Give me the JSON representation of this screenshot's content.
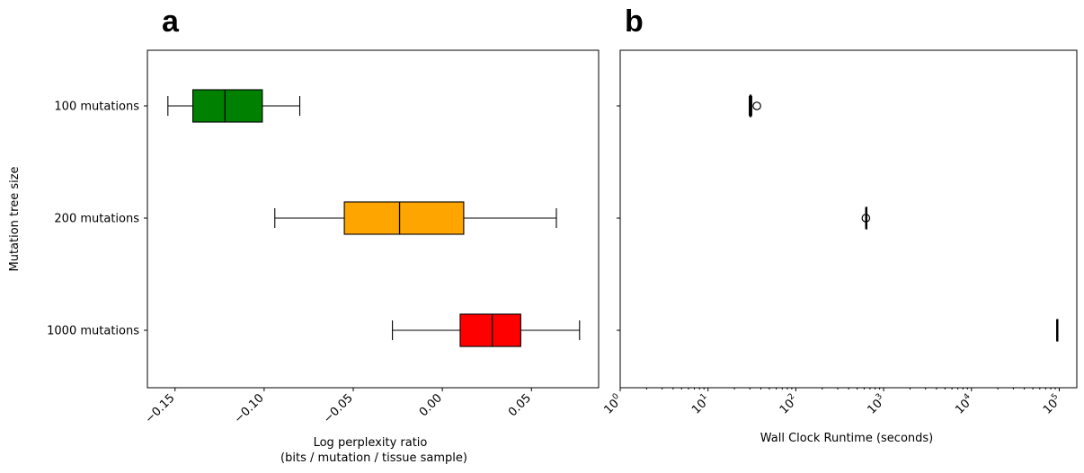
{
  "chart_data": [
    {
      "panel": "a",
      "type": "boxplot-horizontal",
      "ylabel": "Mutation tree size",
      "xlabel_lines": [
        "Log perplexity ratio",
        "(bits / mutation / tissue sample)"
      ],
      "xlim": [
        -0.1655,
        0.0877
      ],
      "xticks": [
        -0.15,
        -0.1,
        -0.05,
        0.0,
        0.05
      ],
      "xtick_labels": [
        "−0.15",
        "−0.10",
        "−0.05",
        "0.00",
        "0.05"
      ],
      "categories": [
        "100 mutations",
        "200 mutations",
        "1000 mutations"
      ],
      "series": [
        {
          "name": "100 mutations",
          "color": "#008000",
          "whislo": -0.154,
          "q1": -0.14,
          "median": -0.122,
          "q3": -0.101,
          "whishi": -0.08
        },
        {
          "name": "200 mutations",
          "color": "#ffa500",
          "whislo": -0.094,
          "q1": -0.055,
          "median": -0.024,
          "q3": 0.012,
          "whishi": 0.064
        },
        {
          "name": "1000 mutations",
          "color": "#ff0000",
          "whislo": -0.028,
          "q1": 0.01,
          "median": 0.028,
          "q3": 0.044,
          "whishi": 0.077
        }
      ]
    },
    {
      "panel": "b",
      "type": "boxplot-horizontal-log",
      "xlabel": "Wall Clock Runtime (seconds)",
      "xlim_exp": [
        0,
        5.2
      ],
      "xtick_exps": [
        0,
        1,
        2,
        3,
        4,
        5
      ],
      "categories": [
        "100 mutations",
        "200 mutations",
        "1000 mutations"
      ],
      "series": [
        {
          "name": "100 mutations",
          "color": "#008000",
          "whislo": 29.5,
          "q1": 30.0,
          "median": 30.5,
          "q3": 31.0,
          "whishi": 31.5,
          "fliers": [
            36.0
          ]
        },
        {
          "name": "200 mutations",
          "color": "#ffa500",
          "whislo": 625,
          "q1": 627,
          "median": 628,
          "q3": 630,
          "whishi": 632,
          "fliers": [
            628
          ]
        },
        {
          "name": "1000 mutations",
          "color": "#ff0000",
          "whislo": 93500,
          "q1": 93800,
          "median": 94000,
          "q3": 94200,
          "whishi": 94500,
          "fliers": []
        }
      ]
    }
  ]
}
